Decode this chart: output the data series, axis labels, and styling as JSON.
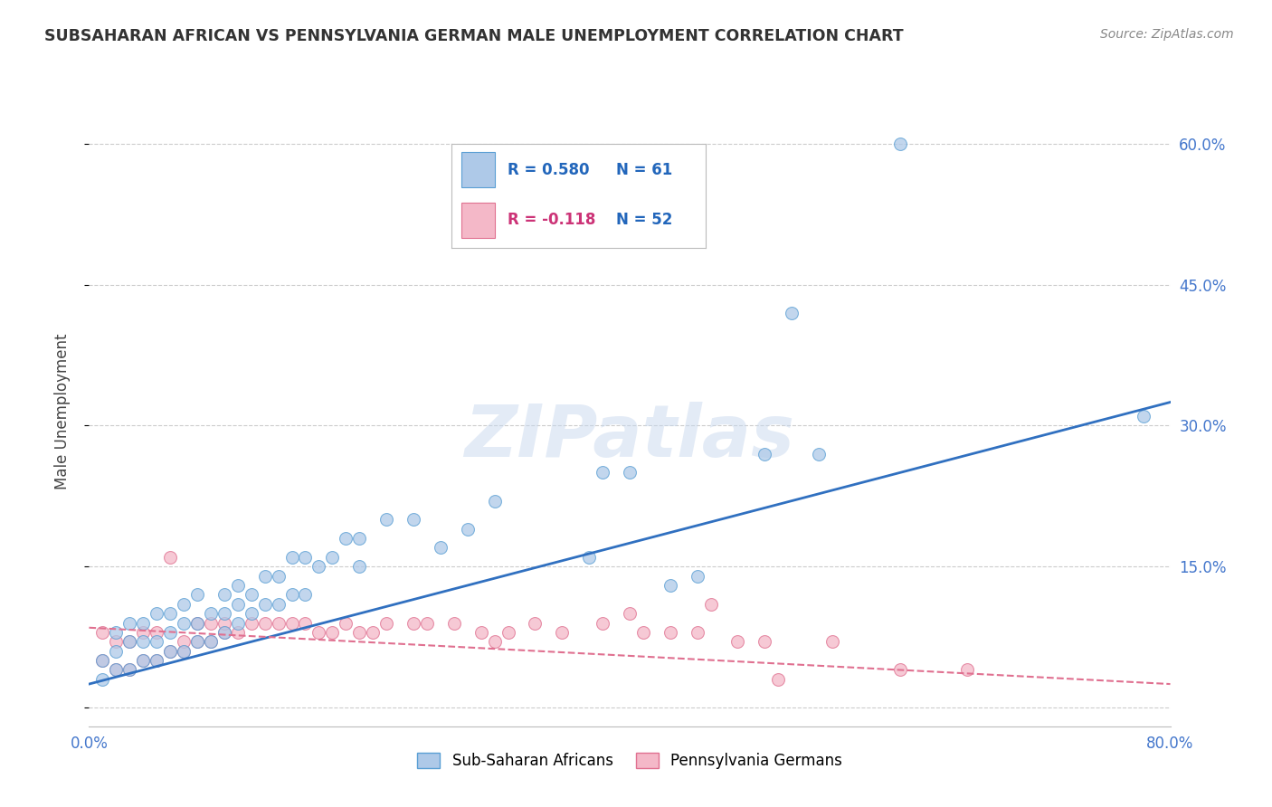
{
  "title": "SUBSAHARAN AFRICAN VS PENNSYLVANIA GERMAN MALE UNEMPLOYMENT CORRELATION CHART",
  "source": "Source: ZipAtlas.com",
  "ylabel": "Male Unemployment",
  "xlim": [
    0.0,
    0.8
  ],
  "ylim": [
    -0.02,
    0.65
  ],
  "xticks": [
    0.0,
    0.1,
    0.2,
    0.3,
    0.4,
    0.5,
    0.6,
    0.7,
    0.8
  ],
  "xticklabels": [
    "0.0%",
    "",
    "",
    "",
    "",
    "",
    "",
    "",
    "80.0%"
  ],
  "yticks": [
    0.0,
    0.15,
    0.3,
    0.45,
    0.6
  ],
  "yticklabels": [
    "",
    "15.0%",
    "30.0%",
    "45.0%",
    "60.0%"
  ],
  "blue_color": "#aec9e8",
  "blue_edge": "#5a9fd4",
  "pink_color": "#f4b8c8",
  "pink_edge": "#e07090",
  "trend_blue": "#3070c0",
  "trend_pink": "#e07090",
  "R_blue": 0.58,
  "N_blue": 61,
  "R_pink": -0.118,
  "N_pink": 52,
  "legend_label_blue": "Sub-Saharan Africans",
  "legend_label_pink": "Pennsylvania Germans",
  "watermark": "ZIPatlas",
  "blue_scatter_x": [
    0.01,
    0.01,
    0.02,
    0.02,
    0.02,
    0.03,
    0.03,
    0.03,
    0.04,
    0.04,
    0.04,
    0.05,
    0.05,
    0.05,
    0.06,
    0.06,
    0.06,
    0.07,
    0.07,
    0.07,
    0.08,
    0.08,
    0.08,
    0.09,
    0.09,
    0.1,
    0.1,
    0.1,
    0.11,
    0.11,
    0.11,
    0.12,
    0.12,
    0.13,
    0.13,
    0.14,
    0.14,
    0.15,
    0.15,
    0.16,
    0.16,
    0.17,
    0.18,
    0.19,
    0.2,
    0.2,
    0.22,
    0.24,
    0.26,
    0.28,
    0.3,
    0.37,
    0.38,
    0.4,
    0.43,
    0.45,
    0.5,
    0.52,
    0.54,
    0.6,
    0.78
  ],
  "blue_scatter_y": [
    0.03,
    0.05,
    0.04,
    0.06,
    0.08,
    0.04,
    0.07,
    0.09,
    0.05,
    0.07,
    0.09,
    0.05,
    0.07,
    0.1,
    0.06,
    0.08,
    0.1,
    0.06,
    0.09,
    0.11,
    0.07,
    0.09,
    0.12,
    0.07,
    0.1,
    0.08,
    0.1,
    0.12,
    0.09,
    0.11,
    0.13,
    0.1,
    0.12,
    0.11,
    0.14,
    0.11,
    0.14,
    0.12,
    0.16,
    0.12,
    0.16,
    0.15,
    0.16,
    0.18,
    0.15,
    0.18,
    0.2,
    0.2,
    0.17,
    0.19,
    0.22,
    0.16,
    0.25,
    0.25,
    0.13,
    0.14,
    0.27,
    0.42,
    0.27,
    0.6,
    0.31
  ],
  "pink_scatter_x": [
    0.01,
    0.01,
    0.02,
    0.02,
    0.03,
    0.03,
    0.04,
    0.04,
    0.05,
    0.05,
    0.06,
    0.06,
    0.07,
    0.07,
    0.08,
    0.08,
    0.09,
    0.09,
    0.1,
    0.1,
    0.11,
    0.12,
    0.13,
    0.14,
    0.15,
    0.16,
    0.17,
    0.18,
    0.19,
    0.2,
    0.21,
    0.22,
    0.24,
    0.25,
    0.27,
    0.29,
    0.3,
    0.31,
    0.33,
    0.35,
    0.38,
    0.4,
    0.41,
    0.43,
    0.45,
    0.46,
    0.48,
    0.5,
    0.51,
    0.55,
    0.6,
    0.65
  ],
  "pink_scatter_y": [
    0.05,
    0.08,
    0.04,
    0.07,
    0.04,
    0.07,
    0.05,
    0.08,
    0.05,
    0.08,
    0.06,
    0.16,
    0.06,
    0.07,
    0.07,
    0.09,
    0.07,
    0.09,
    0.08,
    0.09,
    0.08,
    0.09,
    0.09,
    0.09,
    0.09,
    0.09,
    0.08,
    0.08,
    0.09,
    0.08,
    0.08,
    0.09,
    0.09,
    0.09,
    0.09,
    0.08,
    0.07,
    0.08,
    0.09,
    0.08,
    0.09,
    0.1,
    0.08,
    0.08,
    0.08,
    0.11,
    0.07,
    0.07,
    0.03,
    0.07,
    0.04,
    0.04
  ],
  "blue_trend_x0": 0.0,
  "blue_trend_y0": 0.025,
  "blue_trend_x1": 0.8,
  "blue_trend_y1": 0.325,
  "pink_trend_x0": 0.0,
  "pink_trend_y0": 0.085,
  "pink_trend_x1": 0.8,
  "pink_trend_y1": 0.025
}
